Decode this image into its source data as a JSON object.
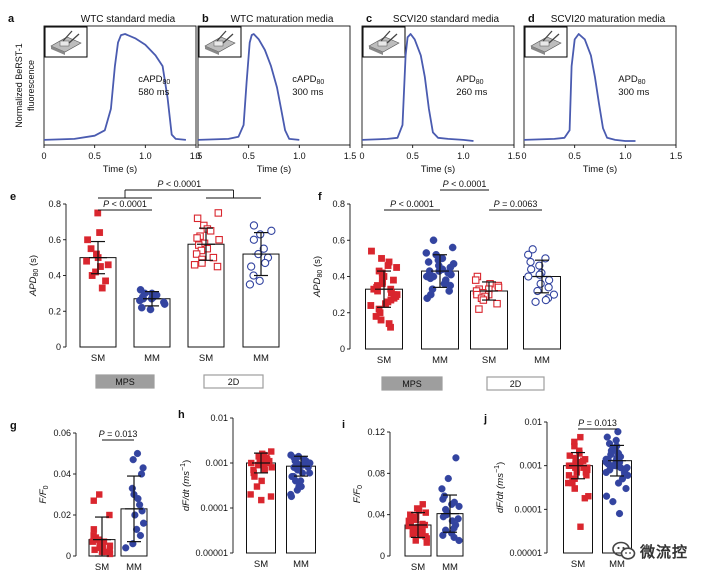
{
  "colors": {
    "trace": "#4a5bb0",
    "red": "#d9262e",
    "blue": "#3344a0",
    "gray": "#9e9e9e",
    "black": "#111111"
  },
  "chart_data": [
    {
      "id": "a",
      "type": "line",
      "panel_label": "a",
      "title": "WTC standard media",
      "ylabel": "Normalized BeRST-1 fluorescence",
      "xlabel": "Time (s)",
      "xlim": [
        0,
        1.5
      ],
      "xticks": [
        "0",
        "0.5",
        "1.0",
        "1.5"
      ],
      "annotation": [
        "cAPD",
        "80",
        "580 ms"
      ],
      "x": [
        0.0,
        0.3,
        0.5,
        0.6,
        0.66,
        0.7,
        0.73,
        0.76,
        0.8,
        0.9,
        1.0,
        1.1,
        1.17,
        1.22,
        1.26,
        1.3,
        1.4
      ],
      "y": [
        0.01,
        0.02,
        0.05,
        0.1,
        0.3,
        0.7,
        0.92,
        0.99,
        1.0,
        0.96,
        0.9,
        0.8,
        0.7,
        0.4,
        0.06,
        0.02,
        0.01
      ]
    },
    {
      "id": "b",
      "type": "line",
      "panel_label": "b",
      "title": "WTC maturation media",
      "xlabel": "Time (s)",
      "xlim": [
        0,
        1.5
      ],
      "xticks": [
        "0",
        "0.5",
        "1.0",
        "1.5"
      ],
      "annotation": [
        "cAPD",
        "80",
        "300 ms"
      ],
      "x": [
        0.0,
        0.3,
        0.4,
        0.45,
        0.48,
        0.51,
        0.53,
        0.55,
        0.6,
        0.66,
        0.72,
        0.78,
        0.82,
        0.86,
        0.9,
        1.0
      ],
      "y": [
        0.01,
        0.02,
        0.04,
        0.15,
        0.55,
        0.92,
        0.99,
        1.0,
        0.95,
        0.85,
        0.7,
        0.5,
        0.3,
        0.1,
        0.02,
        0.01
      ]
    },
    {
      "id": "c",
      "type": "line",
      "panel_label": "c",
      "title": "SCVI20 standard media",
      "xlabel": "Time (s)",
      "xlim": [
        0,
        1.5
      ],
      "xticks": [
        "0",
        "0.5",
        "1.0",
        "1.5"
      ],
      "annotation": [
        "APD",
        "80",
        "260 ms"
      ],
      "x": [
        0.0,
        0.25,
        0.35,
        0.4,
        0.43,
        0.45,
        0.48,
        0.52,
        0.58,
        0.62,
        0.66,
        0.7,
        0.75,
        0.85,
        1.0,
        1.1
      ],
      "y": [
        0.01,
        0.02,
        0.03,
        0.15,
        0.8,
        0.97,
        1.0,
        0.95,
        0.8,
        0.6,
        0.3,
        0.08,
        0.03,
        0.02,
        0.01,
        0.0
      ]
    },
    {
      "id": "d",
      "type": "line",
      "panel_label": "d",
      "title": "SCVI20 maturation media",
      "xlabel": "Time (s)",
      "xlim": [
        0,
        1.5
      ],
      "xticks": [
        "0",
        "0.5",
        "1.0",
        "1.5"
      ],
      "annotation": [
        "APD",
        "80",
        "300 ms"
      ],
      "x": [
        0.0,
        0.3,
        0.4,
        0.45,
        0.47,
        0.5,
        0.54,
        0.6,
        0.66,
        0.7,
        0.74,
        0.78,
        0.82,
        0.9,
        1.0,
        1.1
      ],
      "y": [
        0.01,
        0.02,
        0.03,
        0.1,
        0.7,
        0.95,
        1.0,
        0.95,
        0.8,
        0.6,
        0.35,
        0.12,
        0.03,
        0.01,
        0.0,
        0.0
      ]
    },
    {
      "id": "e",
      "type": "bar",
      "panel_label": "e",
      "ylabel_main": "APD",
      "ylabel_sub": "80",
      "ylabel_unit": " (s)",
      "ylim": [
        0,
        0.8
      ],
      "yticks": [
        "0",
        "0.2",
        "0.4",
        "0.6",
        "0.8"
      ],
      "categories": [
        "SM",
        "MM",
        "SM",
        "MM"
      ],
      "means": [
        0.5,
        0.27,
        0.575,
        0.52
      ],
      "sd": [
        0.09,
        0.04,
        0.09,
        0.12
      ],
      "markers": [
        "sq-filled-red",
        "circ-filled-blue",
        "sq-open-red",
        "circ-open-blue"
      ],
      "points": [
        [
          0.75,
          0.64,
          0.6,
          0.55,
          0.52,
          0.5,
          0.48,
          0.46,
          0.45,
          0.42,
          0.4,
          0.37,
          0.33
        ],
        [
          0.32,
          0.3,
          0.3,
          0.29,
          0.28,
          0.28,
          0.27,
          0.27,
          0.26,
          0.25,
          0.24,
          0.22,
          0.21
        ],
        [
          0.75,
          0.72,
          0.68,
          0.66,
          0.65,
          0.62,
          0.61,
          0.6,
          0.58,
          0.57,
          0.55,
          0.54,
          0.52,
          0.5,
          0.49,
          0.47,
          0.46,
          0.45
        ],
        [
          0.68,
          0.65,
          0.63,
          0.6,
          0.55,
          0.52,
          0.5,
          0.47,
          0.45,
          0.4,
          0.37,
          0.35
        ]
      ],
      "groups": [
        "MPS",
        "2D"
      ],
      "group_styles": [
        "filled",
        "outline"
      ],
      "sig": [
        {
          "label": "P < 0.0001",
          "from": 0,
          "to": 1,
          "level": 0
        },
        {
          "label": "P < 0.0001",
          "from_group": 0,
          "to_group": 1,
          "level": 1
        }
      ]
    },
    {
      "id": "f",
      "type": "bar",
      "panel_label": "f",
      "ylabel_main": "APD",
      "ylabel_sub": "80",
      "ylabel_unit": " (s)",
      "ylim": [
        0,
        0.8
      ],
      "yticks": [
        "0",
        "0.2",
        "0.4",
        "0.6",
        "0.8"
      ],
      "categories": [
        "SM",
        "MM",
        "SM",
        "MM"
      ],
      "means": [
        0.33,
        0.43,
        0.32,
        0.4
      ],
      "sd": [
        0.1,
        0.09,
        0.05,
        0.09
      ],
      "markers": [
        "sq-filled-red",
        "circ-filled-blue",
        "sq-open-red",
        "circ-open-blue"
      ],
      "points": [
        [
          0.54,
          0.5,
          0.48,
          0.46,
          0.45,
          0.43,
          0.42,
          0.4,
          0.39,
          0.38,
          0.37,
          0.36,
          0.35,
          0.34,
          0.33,
          0.33,
          0.32,
          0.31,
          0.3,
          0.3,
          0.29,
          0.28,
          0.27,
          0.26,
          0.25,
          0.24,
          0.22,
          0.2,
          0.18,
          0.16,
          0.14,
          0.12
        ],
        [
          0.6,
          0.56,
          0.53,
          0.52,
          0.5,
          0.49,
          0.48,
          0.47,
          0.46,
          0.45,
          0.44,
          0.43,
          0.43,
          0.42,
          0.41,
          0.4,
          0.4,
          0.39,
          0.38,
          0.37,
          0.36,
          0.35,
          0.33,
          0.32,
          0.3,
          0.28
        ],
        [
          0.4,
          0.38,
          0.36,
          0.35,
          0.34,
          0.33,
          0.33,
          0.32,
          0.31,
          0.3,
          0.3,
          0.29,
          0.28,
          0.27,
          0.25,
          0.22
        ],
        [
          0.55,
          0.52,
          0.5,
          0.48,
          0.46,
          0.44,
          0.42,
          0.41,
          0.4,
          0.38,
          0.36,
          0.34,
          0.32,
          0.3,
          0.28,
          0.27,
          0.26
        ]
      ],
      "groups": [
        "MPS",
        "2D"
      ],
      "group_styles": [
        "filled",
        "outline"
      ],
      "sig": [
        {
          "label": "P < 0.0001",
          "from": 0,
          "to": 1,
          "level": 0
        },
        {
          "label": "P < 0.0001",
          "from": 1,
          "to": 2,
          "level": 1
        },
        {
          "label": "P = 0.0063",
          "from": 2,
          "to": 3,
          "level": 0
        }
      ]
    },
    {
      "id": "g",
      "type": "bar",
      "panel_label": "g",
      "scale": "linear",
      "ylabel_main": "F/F",
      "ylabel_sub": "0",
      "ylabel_unit": "",
      "ylim": [
        0,
        0.06
      ],
      "yticks": [
        "0",
        "0.02",
        "0.04",
        "0.06"
      ],
      "categories": [
        "SM",
        "MM"
      ],
      "means": [
        0.008,
        0.023
      ],
      "sd": [
        0.011,
        0.016
      ],
      "markers": [
        "sq-filled-red",
        "circ-filled-blue"
      ],
      "points": [
        [
          0.03,
          0.027,
          0.02,
          0.013,
          0.01,
          0.009,
          0.008,
          0.007,
          0.007,
          0.006,
          0.006,
          0.005,
          0.005,
          0.004,
          0.004,
          0.003,
          0.003,
          0.002,
          0.002,
          0.001
        ],
        [
          0.05,
          0.047,
          0.043,
          0.04,
          0.033,
          0.03,
          0.028,
          0.025,
          0.022,
          0.02,
          0.016,
          0.013,
          0.01,
          0.006,
          0.004
        ]
      ],
      "sig": [
        {
          "label": "P = 0.013",
          "from": 0,
          "to": 1,
          "level": 0
        }
      ]
    },
    {
      "id": "h",
      "type": "bar",
      "panel_label": "h",
      "scale": "log",
      "ylabel_main": "dF/dt (ms",
      "ylabel_sup": "−1",
      "ylabel_unit": ")",
      "ylim_log": [
        -5,
        -2
      ],
      "yticks": [
        "0.00001",
        "0.0001",
        "0.001",
        "0.01"
      ],
      "categories": [
        "SM",
        "MM"
      ],
      "means": [
        0.001,
        0.00085
      ],
      "sd_log": [
        0.22,
        0.22
      ],
      "markers": [
        "sq-filled-red",
        "circ-filled-blue"
      ],
      "points": [
        [
          0.0018,
          0.0016,
          0.0015,
          0.0014,
          0.0013,
          0.0012,
          0.0012,
          0.0011,
          0.0011,
          0.001,
          0.001,
          0.0009,
          0.0009,
          0.0008,
          0.0008,
          0.0007,
          0.0007,
          0.0006,
          0.0005,
          0.0004,
          0.0003,
          0.0002,
          0.00018,
          0.00015
        ],
        [
          0.0015,
          0.0014,
          0.0013,
          0.0012,
          0.0011,
          0.0011,
          0.001,
          0.001,
          0.0009,
          0.0009,
          0.0008,
          0.0008,
          0.0007,
          0.0007,
          0.0006,
          0.0006,
          0.0005,
          0.0005,
          0.0004,
          0.0004,
          0.0003,
          0.0003,
          0.00025,
          0.0002,
          0.00018
        ]
      ],
      "sig": []
    },
    {
      "id": "i",
      "type": "bar",
      "panel_label": "i",
      "scale": "linear",
      "ylabel_main": "F/F",
      "ylabel_sub": "0",
      "ylabel_unit": "",
      "ylim": [
        0,
        0.12
      ],
      "yticks": [
        "0",
        "0.04",
        "0.08",
        "0.12"
      ],
      "categories": [
        "SM",
        "MM"
      ],
      "means": [
        0.03,
        0.041
      ],
      "sd": [
        0.012,
        0.018
      ],
      "markers": [
        "sq-filled-red",
        "circ-filled-blue"
      ],
      "points": [
        [
          0.05,
          0.046,
          0.044,
          0.042,
          0.04,
          0.038,
          0.036,
          0.035,
          0.034,
          0.032,
          0.031,
          0.03,
          0.029,
          0.028,
          0.027,
          0.026,
          0.025,
          0.024,
          0.022,
          0.021,
          0.02,
          0.019,
          0.017,
          0.015,
          0.013
        ],
        [
          0.095,
          0.075,
          0.065,
          0.058,
          0.055,
          0.052,
          0.05,
          0.048,
          0.045,
          0.042,
          0.04,
          0.038,
          0.036,
          0.034,
          0.03,
          0.027,
          0.025,
          0.022,
          0.02,
          0.018,
          0.015
        ]
      ],
      "sig": []
    },
    {
      "id": "j",
      "type": "bar",
      "panel_label": "j",
      "scale": "log",
      "ylabel_main": "dF/dt (ms",
      "ylabel_sup": "−1",
      "ylabel_unit": ")",
      "ylim_log": [
        -5,
        -2
      ],
      "yticks": [
        "0.00001",
        "0.0001",
        "0.001",
        "0.01"
      ],
      "categories": [
        "SM",
        "MM"
      ],
      "means": [
        0.001,
        0.0013
      ],
      "sd_log": [
        0.3,
        0.35
      ],
      "markers": [
        "sq-filled-red",
        "circ-filled-blue"
      ],
      "points": [
        [
          0.0045,
          0.0035,
          0.0028,
          0.0022,
          0.0019,
          0.0017,
          0.0015,
          0.0014,
          0.0013,
          0.0012,
          0.0012,
          0.0011,
          0.0011,
          0.001,
          0.001,
          0.0009,
          0.0009,
          0.0009,
          0.0008,
          0.0008,
          0.0007,
          0.0007,
          0.0006,
          0.0006,
          0.0005,
          0.0005,
          0.0004,
          0.0004,
          0.0003,
          0.0003,
          0.0002,
          0.00018,
          4e-05
        ],
        [
          0.006,
          0.0045,
          0.0038,
          0.0032,
          0.0028,
          0.0025,
          0.0022,
          0.002,
          0.0019,
          0.0018,
          0.0017,
          0.0016,
          0.0015,
          0.0014,
          0.0014,
          0.0013,
          0.0013,
          0.0012,
          0.0012,
          0.0011,
          0.0011,
          0.001,
          0.001,
          0.0009,
          0.0009,
          0.0008,
          0.0008,
          0.0007,
          0.0007,
          0.0006,
          0.0006,
          0.0005,
          0.0004,
          0.0003,
          0.0002,
          0.00015,
          8e-05
        ]
      ],
      "sig": [
        {
          "label": "P = 0.013",
          "from": 0,
          "to": 1,
          "level": 0
        }
      ]
    }
  ],
  "watermark": {
    "text": "微流控",
    "icon": "wechat-icon"
  }
}
